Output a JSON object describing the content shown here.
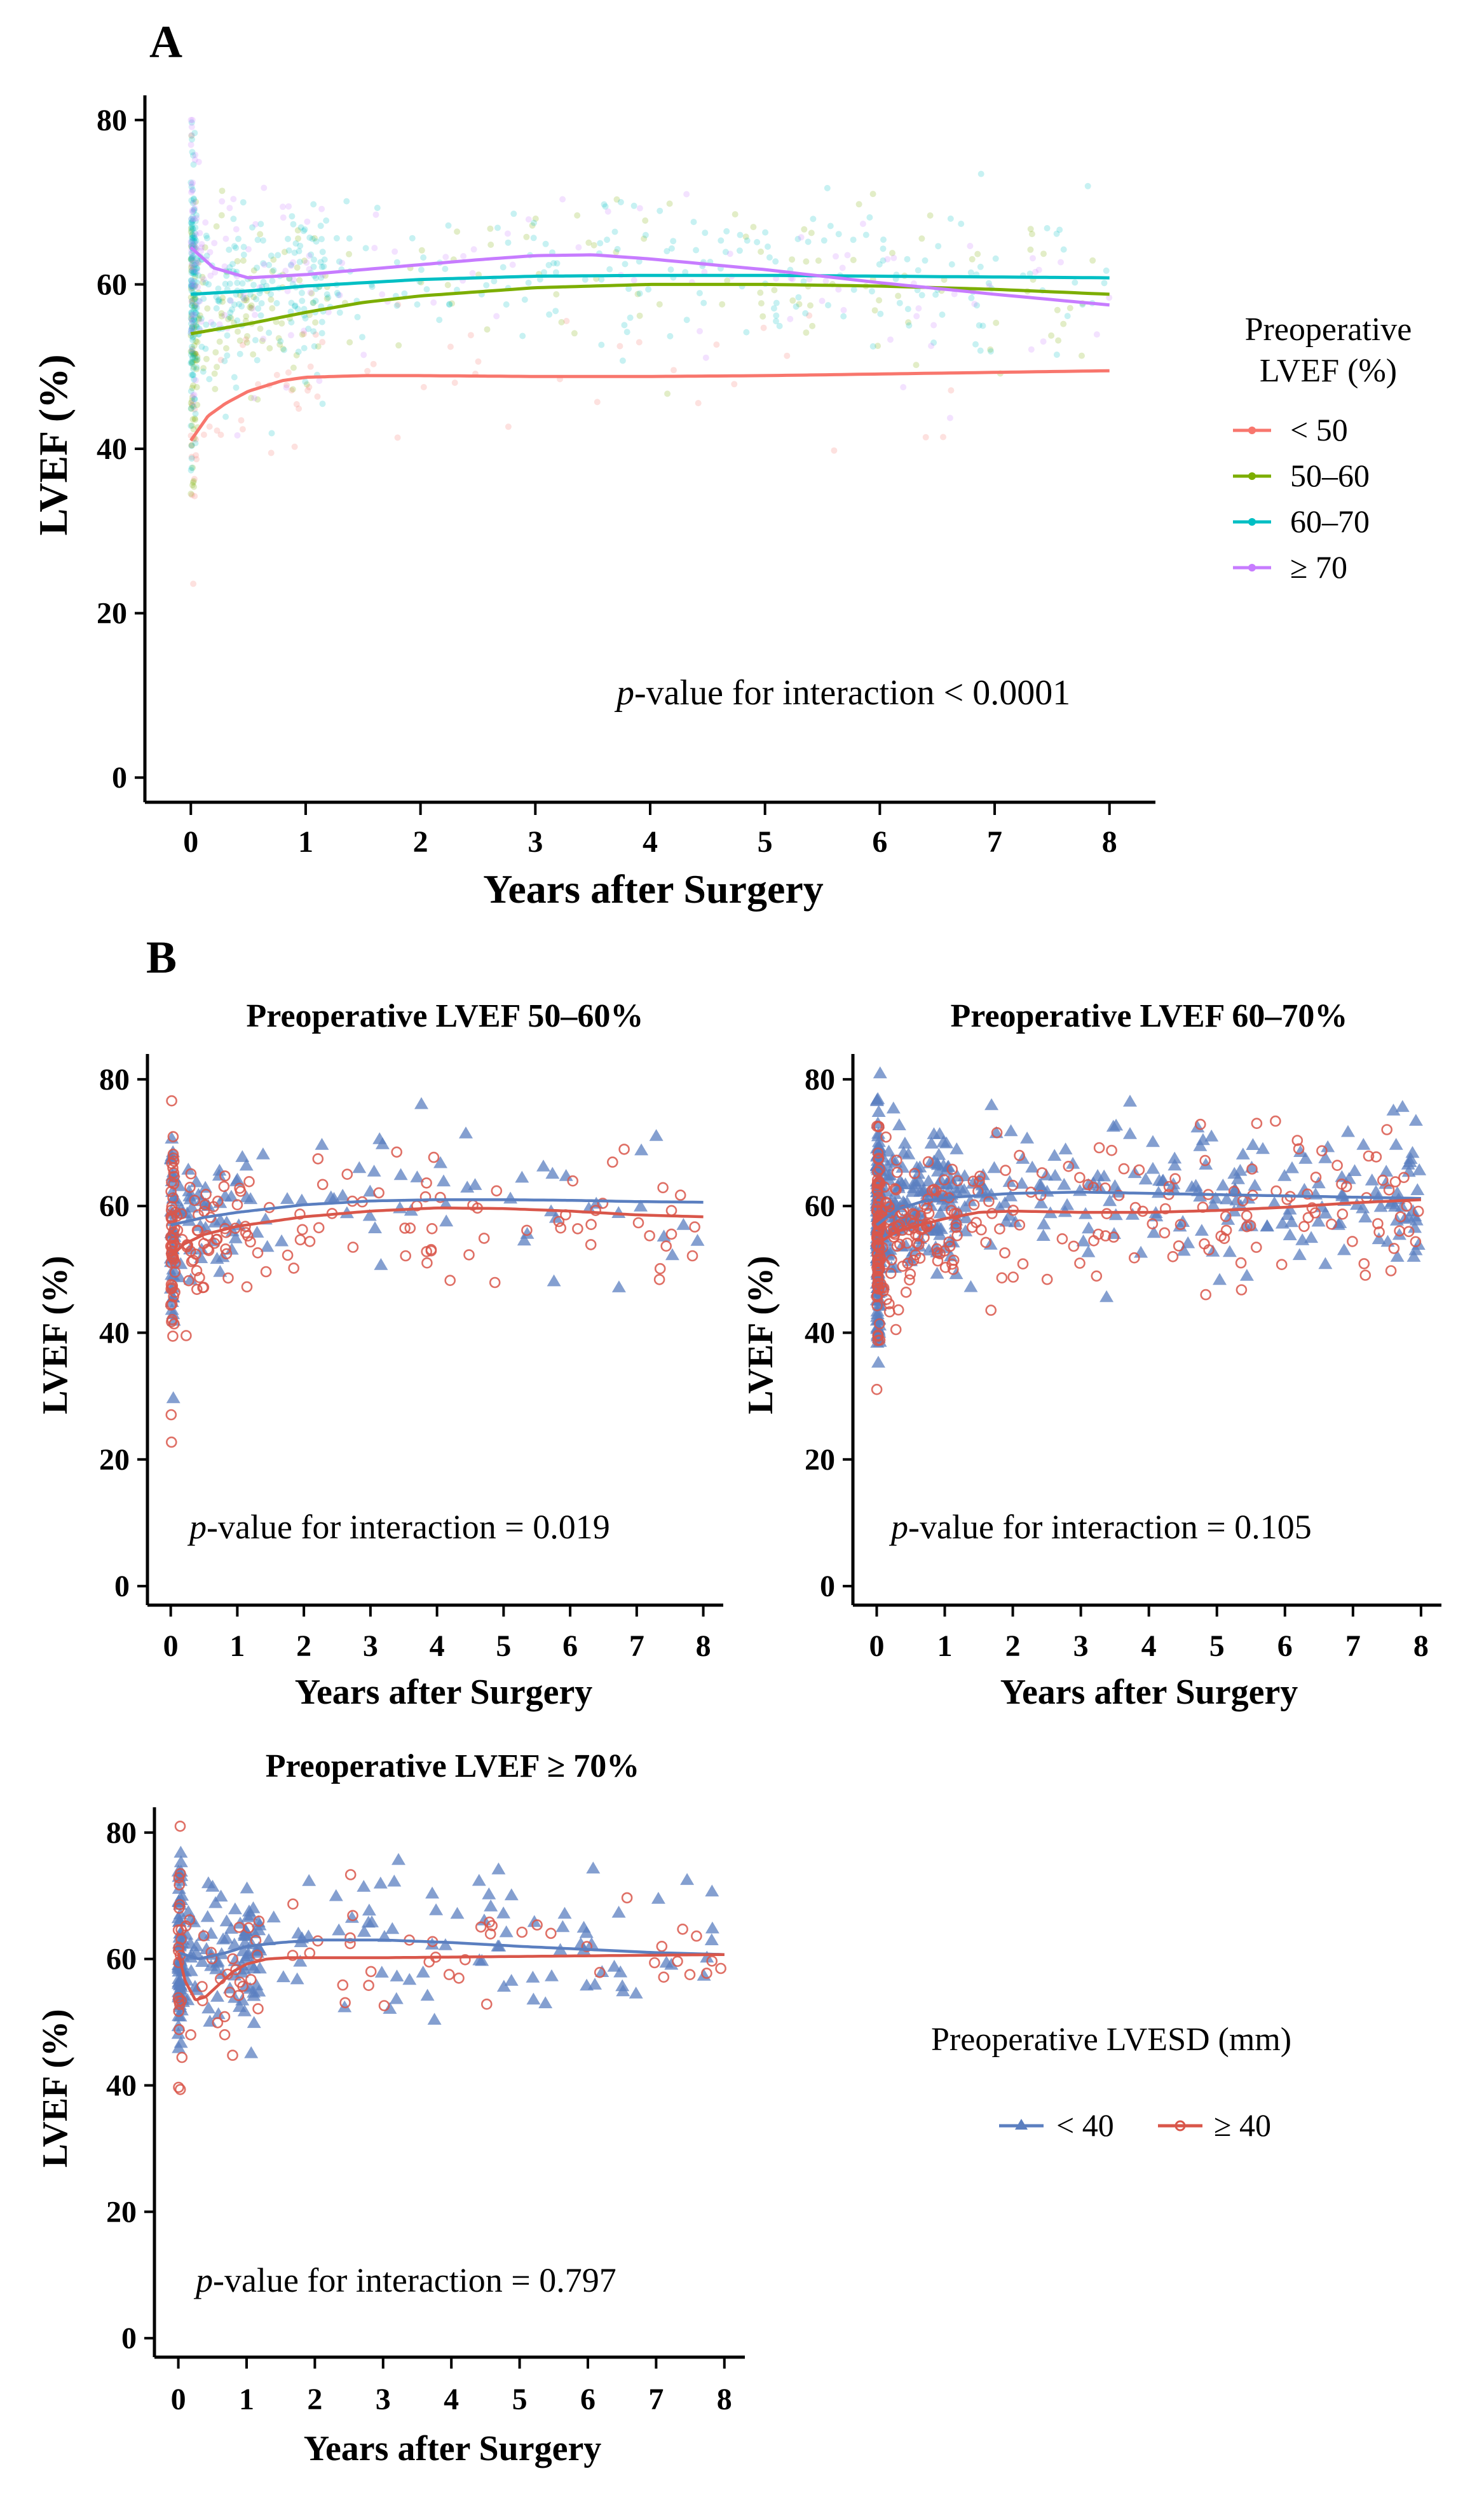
{
  "chart_data": [
    {
      "id": "A",
      "panel_label": "A",
      "type": "scatter",
      "title": "",
      "xlabel": "Years after Surgery",
      "ylabel": "LVEF (%)",
      "xlim": [
        -0.4,
        8.4
      ],
      "ylim": [
        -3,
        83
      ],
      "x_ticks": [
        0,
        1,
        2,
        3,
        4,
        5,
        6,
        7,
        8
      ],
      "y_ticks": [
        0,
        20,
        40,
        60,
        80
      ],
      "legend": {
        "title_line1": "Preoperative",
        "title_line2": "LVEF (%)",
        "position": "right",
        "entries": [
          "< 50",
          "50–60",
          "60–70",
          "≥ 70"
        ]
      },
      "annotation": {
        "italic": "p",
        "text": "-value for interaction < 0.0001"
      },
      "series": [
        {
          "name": "< 50",
          "color": "#F8766D",
          "count": 70,
          "curve": {
            "x": [
              0,
              0.15,
              0.3,
              0.5,
              0.8,
              1,
              1.5,
              2,
              3,
              4,
              5,
              6,
              7,
              8
            ],
            "y": [
              41,
              44,
              45.5,
              47,
              48.3,
              48.7,
              48.9,
              48.9,
              48.8,
              48.8,
              48.9,
              49.1,
              49.3,
              49.5
            ]
          }
        },
        {
          "name": "50–60",
          "color": "#7CAE00",
          "count": 260,
          "curve": {
            "x": [
              0,
              0.5,
              1,
              1.5,
              2,
              3,
              4,
              5,
              6,
              7,
              8
            ],
            "y": [
              54,
              55.2,
              56.6,
              57.8,
              58.6,
              59.6,
              60,
              60,
              59.8,
              59.4,
              58.8
            ]
          }
        },
        {
          "name": "60–70",
          "color": "#00BFC4",
          "count": 520,
          "curve": {
            "x": [
              0,
              0.5,
              1,
              2,
              3,
              4,
              5,
              6,
              7,
              8
            ],
            "y": [
              58.8,
              59.2,
              59.8,
              60.6,
              61,
              61.1,
              61.1,
              61,
              60.9,
              60.8
            ]
          }
        },
        {
          "name": "≥ 70",
          "color": "#C77CFF",
          "count": 180,
          "curve": {
            "x": [
              0,
              0.2,
              0.5,
              1,
              2,
              2.5,
              3,
              3.5,
              4,
              5,
              6,
              7,
              8
            ],
            "y": [
              64.5,
              62,
              60.8,
              61.2,
              62.4,
              63,
              63.5,
              63.6,
              63.1,
              61.8,
              60.2,
              58.8,
              57.5
            ]
          }
        }
      ]
    },
    {
      "id": "B1",
      "panel_label": "B",
      "type": "scatter",
      "title": "Preoperative LVEF 50–60%",
      "xlabel": "Years after Surgery",
      "ylabel": "LVEF (%)",
      "xlim": [
        -0.35,
        8.3
      ],
      "ylim": [
        -3,
        84
      ],
      "x_ticks": [
        0,
        1,
        2,
        3,
        4,
        5,
        6,
        7,
        8
      ],
      "y_ticks": [
        0,
        20,
        40,
        60,
        80
      ],
      "annotation": {
        "italic": "p",
        "text": "-value for interaction = 0.019"
      },
      "series": [
        {
          "name": "< 40",
          "color": "#5B7FC0",
          "marker": "triangle",
          "count": 140,
          "curve": {
            "x": [
              0,
              0.5,
              1,
              2,
              3,
              4,
              5,
              6,
              7,
              8
            ],
            "y": [
              57,
              58.2,
              59,
              60.2,
              60.8,
              61,
              61,
              60.9,
              60.7,
              60.6
            ]
          }
        },
        {
          "name": "≥ 40",
          "color": "#D9564A",
          "marker": "circle",
          "count": 170,
          "curve": {
            "x": [
              0,
              0.2,
              0.5,
              1,
              2,
              3,
              4,
              5,
              6,
              7,
              8
            ],
            "y": [
              52,
              54,
              55.5,
              56.8,
              58.3,
              59.2,
              59.7,
              59.6,
              59.2,
              58.6,
              58.3
            ]
          }
        }
      ]
    },
    {
      "id": "B2",
      "type": "scatter",
      "title": "Preoperative LVEF 60–70%",
      "xlabel": "Years after Surgery",
      "ylabel": "LVEF (%)",
      "xlim": [
        -0.35,
        8.3
      ],
      "ylim": [
        -3,
        84
      ],
      "x_ticks": [
        0,
        1,
        2,
        3,
        4,
        5,
        6,
        7,
        8
      ],
      "y_ticks": [
        0,
        20,
        40,
        60,
        80
      ],
      "annotation": {
        "italic": "p",
        "text": "-value for interaction = 0.105"
      },
      "series": [
        {
          "name": "< 40",
          "color": "#5B7FC0",
          "marker": "triangle",
          "count": 520,
          "curve": {
            "x": [
              0,
              0.3,
              0.7,
              1,
              2,
              3,
              4,
              5,
              6,
              7,
              8
            ],
            "y": [
              57,
              59.5,
              60.8,
              61.3,
              62,
              62.2,
              62,
              61.8,
              61.6,
              61.4,
              61.2
            ]
          }
        },
        {
          "name": "≥ 40",
          "color": "#D9564A",
          "marker": "circle",
          "count": 300,
          "curve": {
            "x": [
              0,
              0.3,
              0.7,
              1,
              1.5,
              2,
              3,
              4,
              5,
              6,
              7,
              8
            ],
            "y": [
              54,
              56,
              57.2,
              58,
              59,
              59.2,
              59,
              59,
              59.3,
              59.8,
              60.5,
              61
            ]
          }
        }
      ]
    },
    {
      "id": "B3",
      "type": "scatter",
      "title": "Preoperative LVEF ≥ 70%",
      "xlabel": "Years after Surgery",
      "ylabel": "LVEF (%)",
      "xlim": [
        -0.35,
        8.3
      ],
      "ylim": [
        -3,
        84
      ],
      "x_ticks": [
        0,
        1,
        2,
        3,
        4,
        5,
        6,
        7,
        8
      ],
      "y_ticks": [
        0,
        20,
        40,
        60,
        80
      ],
      "annotation": {
        "italic": "p",
        "text": "-value for interaction = 0.797"
      },
      "series": [
        {
          "name": "< 40",
          "color": "#5B7FC0",
          "marker": "triangle",
          "count": 230,
          "curve": {
            "x": [
              0,
              0.3,
              0.7,
              1,
              1.5,
              2,
              3,
              4,
              5,
              6,
              7,
              8
            ],
            "y": [
              61,
              60,
              61,
              62,
              62.6,
              63,
              63,
              62.6,
              62,
              61.5,
              61,
              60.7
            ]
          }
        },
        {
          "name": "≥ 40",
          "color": "#D9564A",
          "marker": "circle",
          "count": 90,
          "curve": {
            "x": [
              0,
              0.1,
              0.25,
              0.4,
              0.6,
              0.8,
              1,
              1.3,
              1.6,
              2,
              3,
              4,
              5,
              6,
              7,
              8
            ],
            "y": [
              61,
              56.5,
              53.5,
              54,
              56,
              58,
              59.2,
              60,
              60.2,
              60.2,
              60.2,
              60.3,
              60.4,
              60.5,
              60.6,
              60.7
            ]
          }
        }
      ]
    }
  ],
  "legend_b": {
    "title": "Preoperative LVESD (mm)",
    "entries": [
      {
        "label": "< 40",
        "color": "#5B7FC0"
      },
      {
        "label": "≥ 40",
        "color": "#D9564A"
      }
    ]
  }
}
